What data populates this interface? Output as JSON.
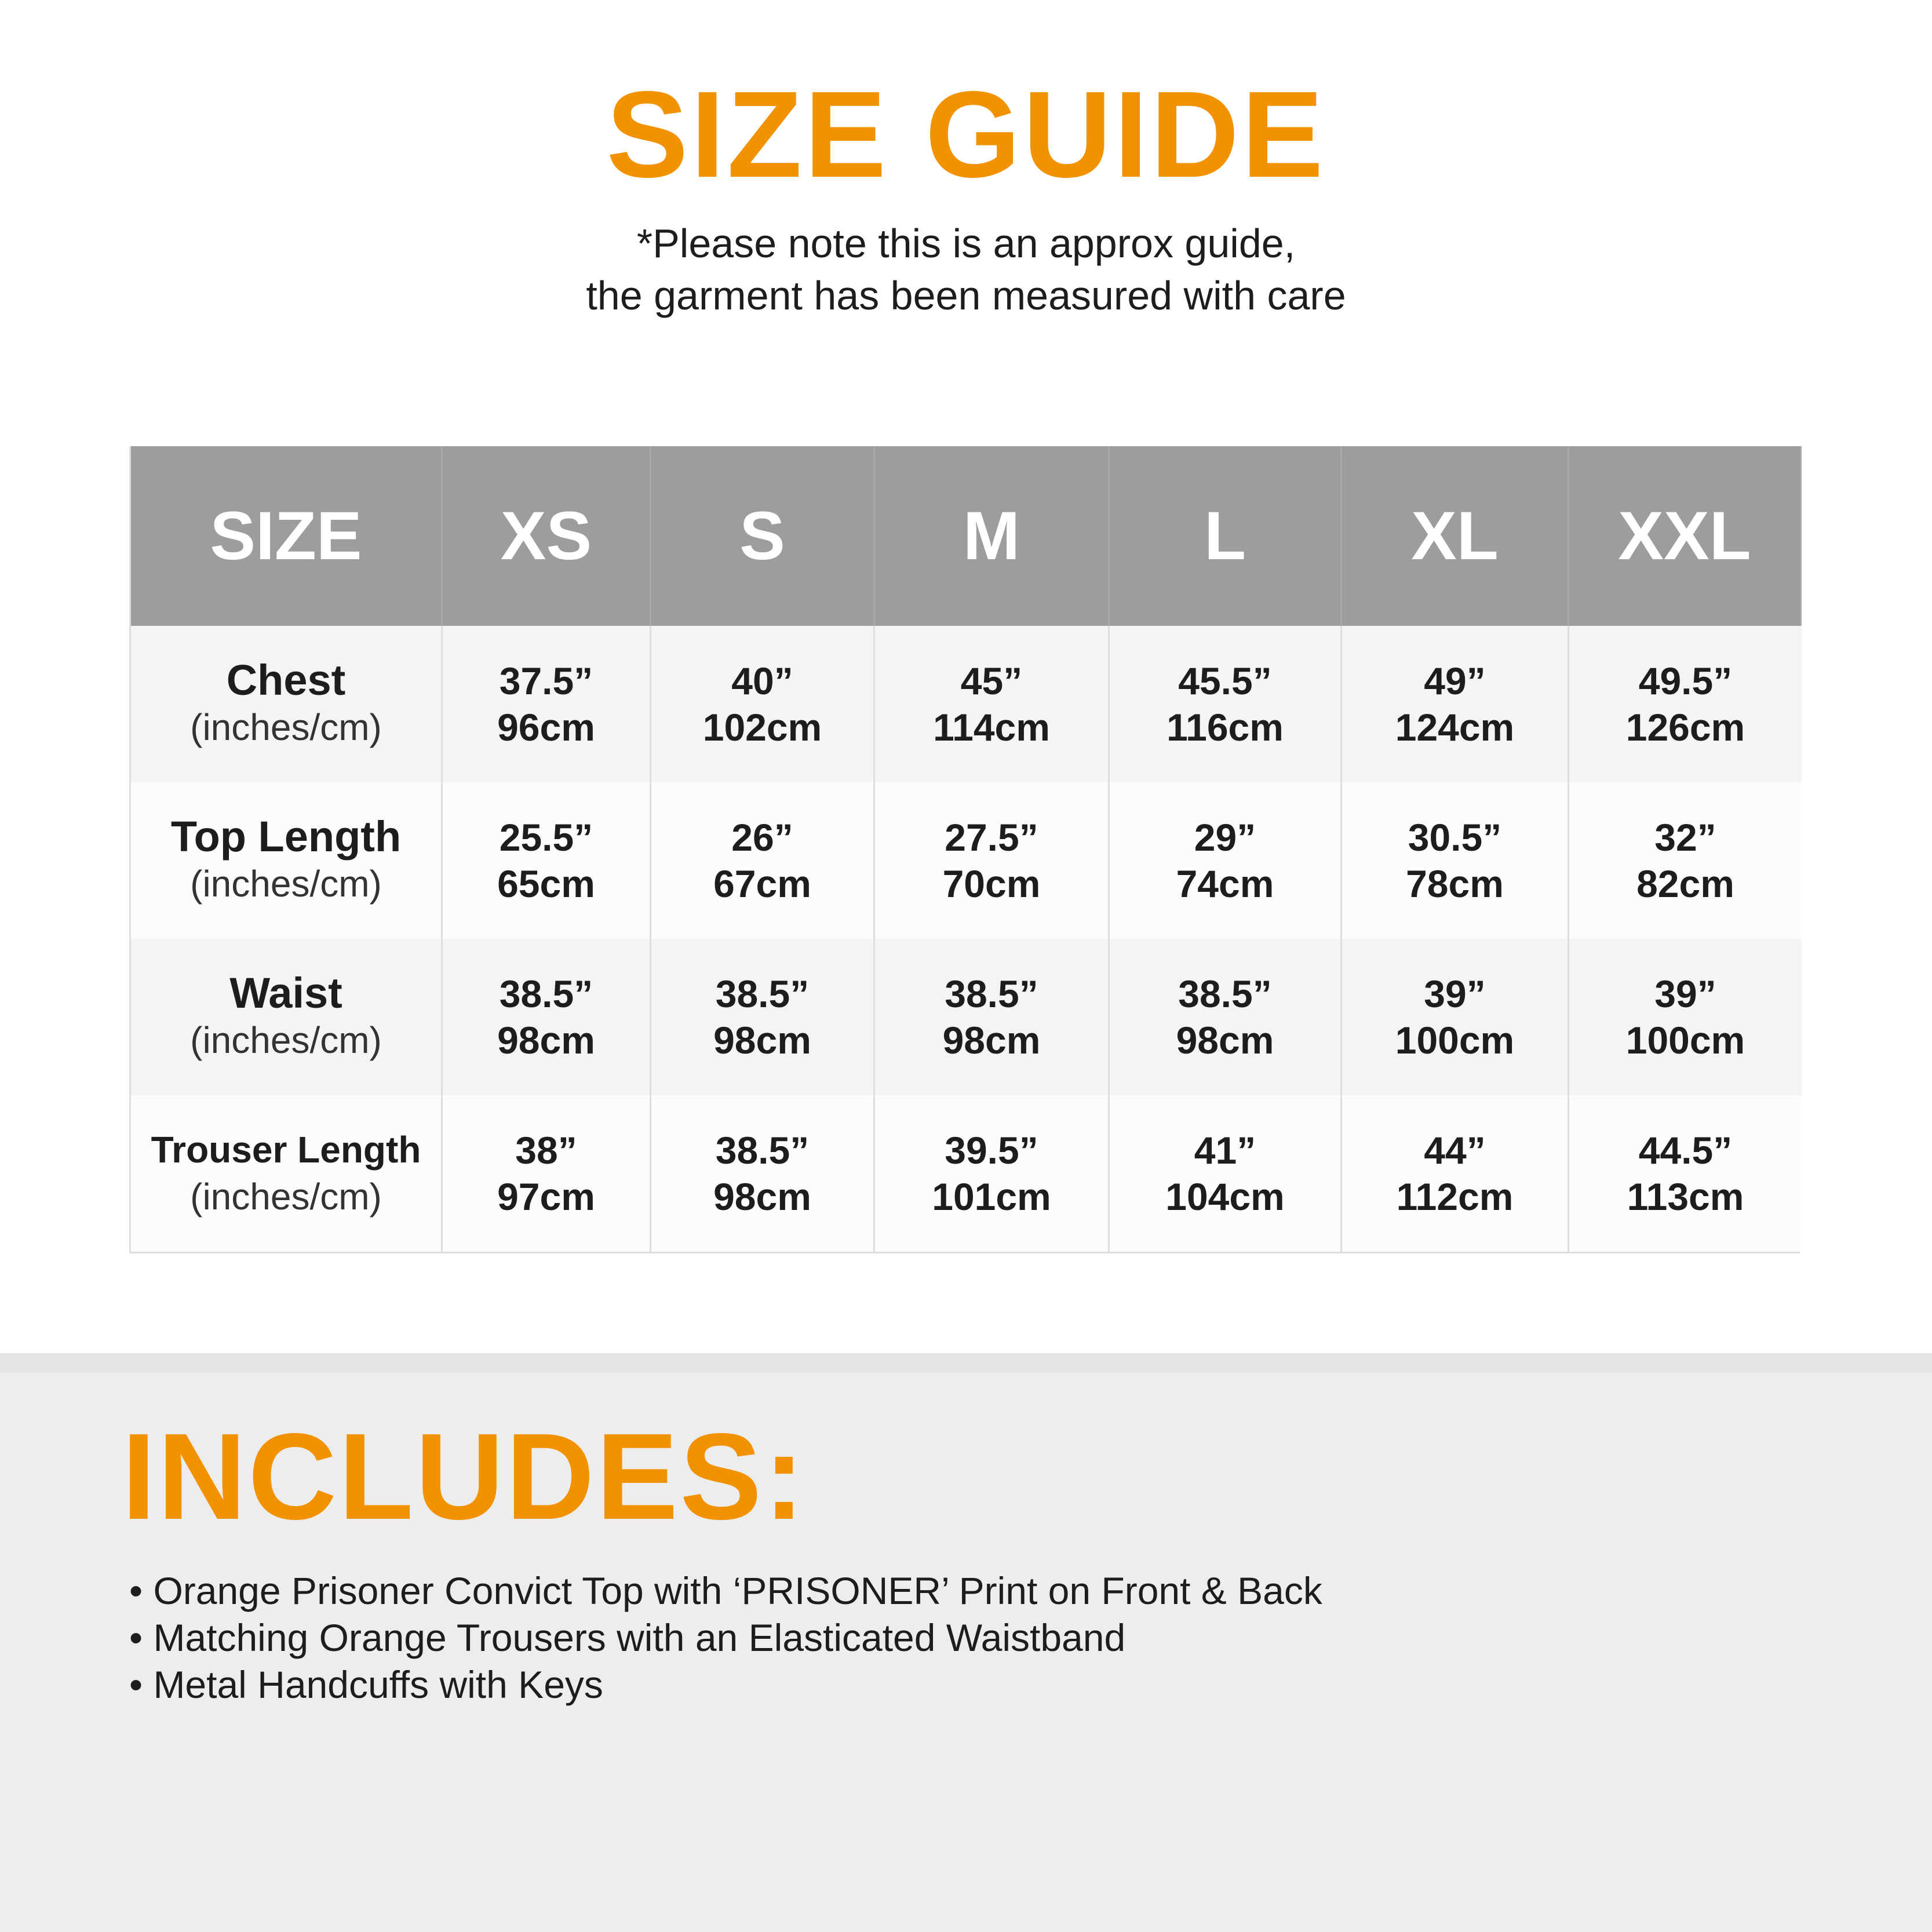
{
  "header": {
    "title": "SIZE GUIDE",
    "note_line1": "*Please note this is an approx guide,",
    "note_line2": "the garment has been measured with care"
  },
  "table": {
    "columns": [
      "SIZE",
      "XS",
      "S",
      "M",
      "L",
      "XL",
      "XXL"
    ],
    "rows": [
      {
        "label": "Chest",
        "unit": "(inches/cm)",
        "values": [
          [
            "37.5”",
            "96cm"
          ],
          [
            "40”",
            "102cm"
          ],
          [
            "45”",
            "114cm"
          ],
          [
            "45.5”",
            "116cm"
          ],
          [
            "49”",
            "124cm"
          ],
          [
            "49.5”",
            "126cm"
          ]
        ]
      },
      {
        "label": "Top Length",
        "unit": "(inches/cm)",
        "values": [
          [
            "25.5”",
            "65cm"
          ],
          [
            "26”",
            "67cm"
          ],
          [
            "27.5”",
            "70cm"
          ],
          [
            "29”",
            "74cm"
          ],
          [
            "30.5”",
            "78cm"
          ],
          [
            "32”",
            "82cm"
          ]
        ]
      },
      {
        "label": "Waist",
        "unit": "(inches/cm)",
        "values": [
          [
            "38.5”",
            "98cm"
          ],
          [
            "38.5”",
            "98cm"
          ],
          [
            "38.5”",
            "98cm"
          ],
          [
            "38.5”",
            "98cm"
          ],
          [
            "39”",
            "100cm"
          ],
          [
            "39”",
            "100cm"
          ]
        ]
      },
      {
        "label": "Trouser Length",
        "unit": "(inches/cm)",
        "values": [
          [
            "38”",
            "97cm"
          ],
          [
            "38.5”",
            "98cm"
          ],
          [
            "39.5”",
            "101cm"
          ],
          [
            "41”",
            "104cm"
          ],
          [
            "44”",
            "112cm"
          ],
          [
            "44.5”",
            "113cm"
          ]
        ]
      }
    ]
  },
  "includes": {
    "title": "INCLUDES:",
    "items": [
      "• Orange Prisoner Convict Top with ‘PRISONER’ Print on Front & Back",
      "• Matching Orange Trousers with an Elasticated Waistband",
      "• Metal Handcuffs with Keys"
    ]
  },
  "colors": {
    "accent": "#f39200",
    "header_bg": "#9d9d9d",
    "band_bg": "#ededed"
  }
}
